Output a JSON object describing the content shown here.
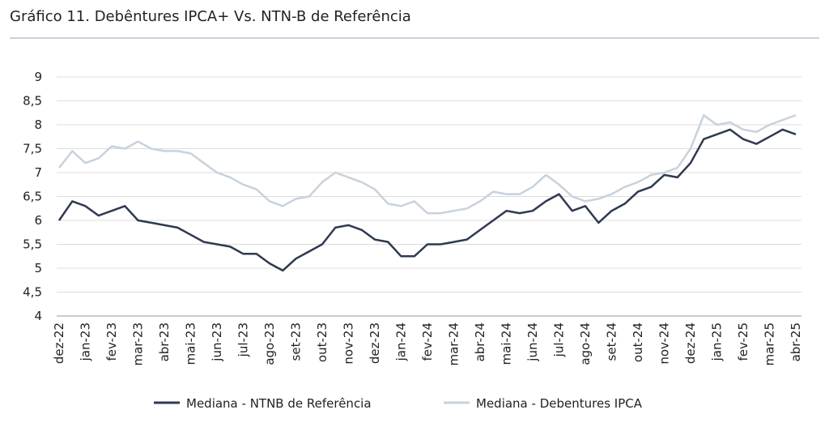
{
  "chart_data": {
    "type": "line",
    "title": "Gráfico 11. Debêntures IPCA+ Vs. NTN-B de Referência",
    "categories": [
      "dez-22",
      null,
      "jan-23",
      null,
      "fev-23",
      null,
      "mar-23",
      null,
      "abr-23",
      null,
      "mai-23",
      null,
      "jun-23",
      null,
      "jul-23",
      null,
      "ago-23",
      null,
      "set-23",
      null,
      "out-23",
      null,
      "nov-23",
      null,
      "dez-23",
      null,
      "jan-24",
      null,
      "fev-24",
      null,
      "mar-24",
      null,
      "abr-24",
      null,
      "mai-24",
      null,
      "jun-24",
      null,
      "jul-24",
      null,
      "ago-24",
      null,
      "set-24",
      null,
      "out-24",
      null,
      "nov-24",
      null,
      "dez-24",
      null,
      "jan-25",
      null,
      "fev-25",
      null,
      "mar-25",
      null,
      "abr-25"
    ],
    "series": [
      {
        "name": "Mediana - NTNB de Referência",
        "color": "#2e3a50",
        "values": [
          6.0,
          6.4,
          6.3,
          6.1,
          6.2,
          6.3,
          6.0,
          5.95,
          5.9,
          5.85,
          5.7,
          5.55,
          5.5,
          5.45,
          5.3,
          5.3,
          5.1,
          4.95,
          5.2,
          5.35,
          5.5,
          5.85,
          5.9,
          5.8,
          5.6,
          5.55,
          5.25,
          5.25,
          5.5,
          5.5,
          5.55,
          5.6,
          5.8,
          6.0,
          6.2,
          6.15,
          6.2,
          6.4,
          6.55,
          6.2,
          6.3,
          5.95,
          6.2,
          6.35,
          6.6,
          6.7,
          6.95,
          6.9,
          7.2,
          7.7,
          7.8,
          7.9,
          7.7,
          7.6,
          7.75,
          7.9,
          7.8
        ]
      },
      {
        "name": "Mediana - Debentures IPCA",
        "color": "#c8d2dd",
        "values": [
          7.1,
          7.45,
          7.2,
          7.3,
          7.55,
          7.5,
          7.65,
          7.5,
          7.45,
          7.45,
          7.4,
          7.2,
          7.0,
          6.9,
          6.75,
          6.65,
          6.4,
          6.3,
          6.45,
          6.5,
          6.8,
          7.0,
          6.9,
          6.8,
          6.65,
          6.35,
          6.3,
          6.4,
          6.15,
          6.15,
          6.2,
          6.25,
          6.4,
          6.6,
          6.55,
          6.55,
          6.7,
          6.95,
          6.75,
          6.5,
          6.4,
          6.45,
          6.55,
          6.7,
          6.8,
          6.95,
          7.0,
          7.1,
          7.5,
          8.2,
          8.0,
          8.05,
          7.9,
          7.85,
          8.0,
          8.1,
          8.2
        ]
      }
    ],
    "ylim": [
      4,
      9
    ],
    "yticks": [
      4,
      {
        "value": 4.5,
        "label": "4,5"
      },
      5,
      {
        "value": 5.5,
        "label": "5,5"
      },
      6,
      {
        "value": 6.5,
        "label": "6,5"
      },
      7,
      {
        "value": 7.5,
        "label": "7,5"
      },
      8,
      {
        "value": 8.5,
        "label": "8,5"
      },
      9
    ],
    "grid": true
  }
}
